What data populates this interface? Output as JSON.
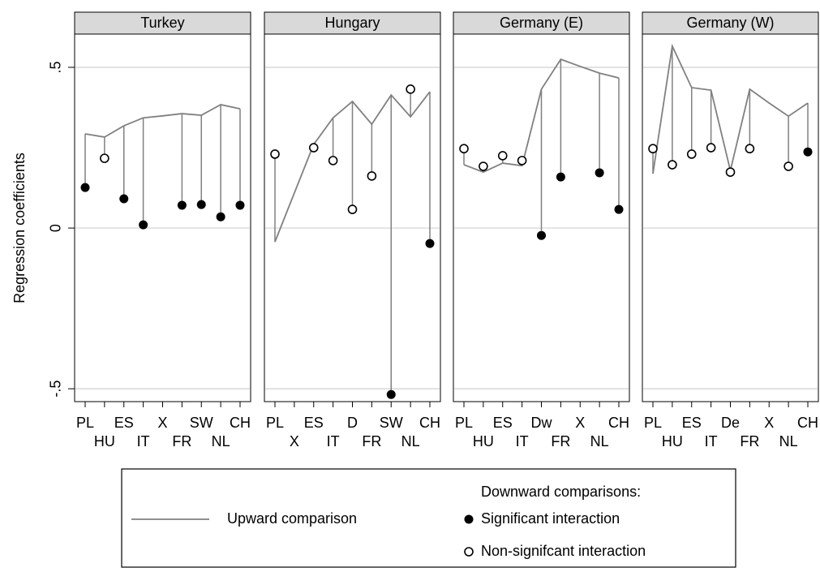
{
  "chart_data": {
    "type": "dropline",
    "ylabel": "Regression coefficients",
    "ylim": [
      -0.54,
      0.6035
    ],
    "yticks": [
      {
        "value": -0.5,
        "label": "-.5"
      },
      0,
      {
        "value": 0.5,
        "label": ".5"
      }
    ],
    "grid": true,
    "legend_title": "Downward comparisons:",
    "series": [
      {
        "name": "Upward comparison",
        "color": "#808080"
      },
      {
        "name": "Significant interaction",
        "color": "#000000"
      },
      {
        "name": "Non-signifcant interaction",
        "color": "#000000"
      }
    ],
    "panels": [
      {
        "title": "Turkey",
        "categories": [
          "PL",
          "HU",
          "ES",
          "IT",
          "X",
          "FR",
          "SW",
          "NL",
          "CH"
        ],
        "upward": [
          0.293,
          0.283,
          0.318,
          0.343,
          0.349,
          0.356,
          0.351,
          0.384,
          0.371
        ],
        "significant": [
          0.126,
          null,
          0.091,
          0.01,
          null,
          0.071,
          0.073,
          0.035,
          0.071
        ],
        "non_significant": [
          null,
          0.217,
          null,
          null,
          null,
          null,
          null,
          null,
          null
        ]
      },
      {
        "title": "Hungary",
        "categories": [
          "PL",
          "X",
          "ES",
          "IT",
          "D",
          "FR",
          "SW",
          "NL",
          "CH"
        ],
        "upward": [
          -0.043,
          0.109,
          0.26,
          0.343,
          0.394,
          0.323,
          0.414,
          0.346,
          0.424
        ],
        "significant": [
          null,
          null,
          null,
          null,
          null,
          null,
          -0.518,
          null,
          -0.048
        ],
        "non_significant": [
          0.23,
          null,
          0.25,
          0.21,
          0.058,
          0.162,
          null,
          0.432,
          null
        ]
      },
      {
        "title": "Germany (E)",
        "categories": [
          "PL",
          "HU",
          "ES",
          "IT",
          "Dw",
          "FR",
          "X",
          "NL",
          "CH"
        ],
        "upward": [
          0.197,
          0.174,
          0.202,
          0.194,
          0.432,
          0.525,
          0.503,
          0.482,
          0.467
        ],
        "significant": [
          null,
          null,
          null,
          null,
          -0.023,
          0.159,
          null,
          0.172,
          0.058
        ],
        "non_significant": [
          0.247,
          0.192,
          0.225,
          0.21,
          null,
          null,
          null,
          null,
          null
        ]
      },
      {
        "title": "Germany (W)",
        "categories": [
          "PL",
          "HU",
          "ES",
          "IT",
          "De",
          "FR",
          "X",
          "NL",
          "CH"
        ],
        "upward": [
          0.169,
          0.566,
          0.437,
          0.429,
          0.179,
          0.432,
          0.389,
          0.348,
          0.389
        ],
        "significant": [
          null,
          null,
          null,
          null,
          null,
          null,
          null,
          null,
          0.237
        ],
        "non_significant": [
          0.247,
          0.197,
          0.23,
          0.25,
          0.174,
          0.247,
          null,
          0.192,
          null
        ]
      }
    ]
  }
}
